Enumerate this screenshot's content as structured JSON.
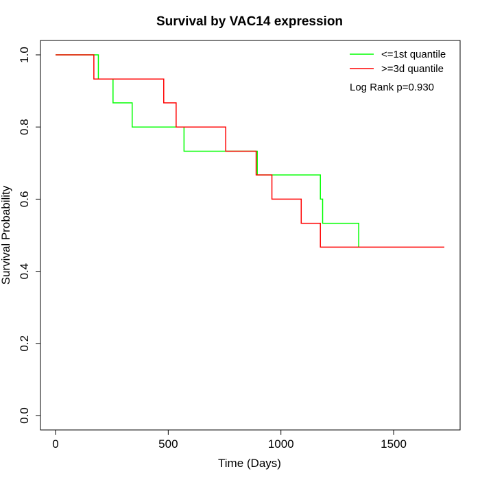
{
  "chart_data": {
    "type": "line",
    "title": "Survival by VAC14 expression",
    "xlabel": "Time (Days)",
    "ylabel": "Survival Probability",
    "xlim": [
      0,
      1800
    ],
    "ylim": [
      0,
      1.0
    ],
    "xticks": [
      0,
      500,
      1000,
      1500
    ],
    "yticks": [
      0.0,
      0.2,
      0.4,
      0.6,
      0.8,
      1.0
    ],
    "xtick_labels": [
      "0",
      "500",
      "1000",
      "1500"
    ],
    "ytick_labels": [
      "0.0",
      "0.2",
      "0.4",
      "0.6",
      "0.8",
      "1.0"
    ],
    "step": true,
    "legend_position": "top-right",
    "series": [
      {
        "name": "<=1st quantile",
        "color": "#00ff00",
        "x": [
          0,
          190,
          255,
          340,
          570,
          895,
          1175,
          1185,
          1345
        ],
        "y": [
          1.0,
          0.933,
          0.867,
          0.8,
          0.733,
          0.667,
          0.6,
          0.533,
          0.467
        ]
      },
      {
        "name": ">=3d quantile",
        "color": "#ff0000",
        "x": [
          0,
          170,
          480,
          535,
          755,
          890,
          960,
          1090,
          1175,
          1725
        ],
        "y": [
          1.0,
          0.933,
          0.867,
          0.8,
          0.733,
          0.667,
          0.6,
          0.533,
          0.467,
          0.467
        ]
      }
    ],
    "annotation": "Log Rank p=0.930"
  }
}
